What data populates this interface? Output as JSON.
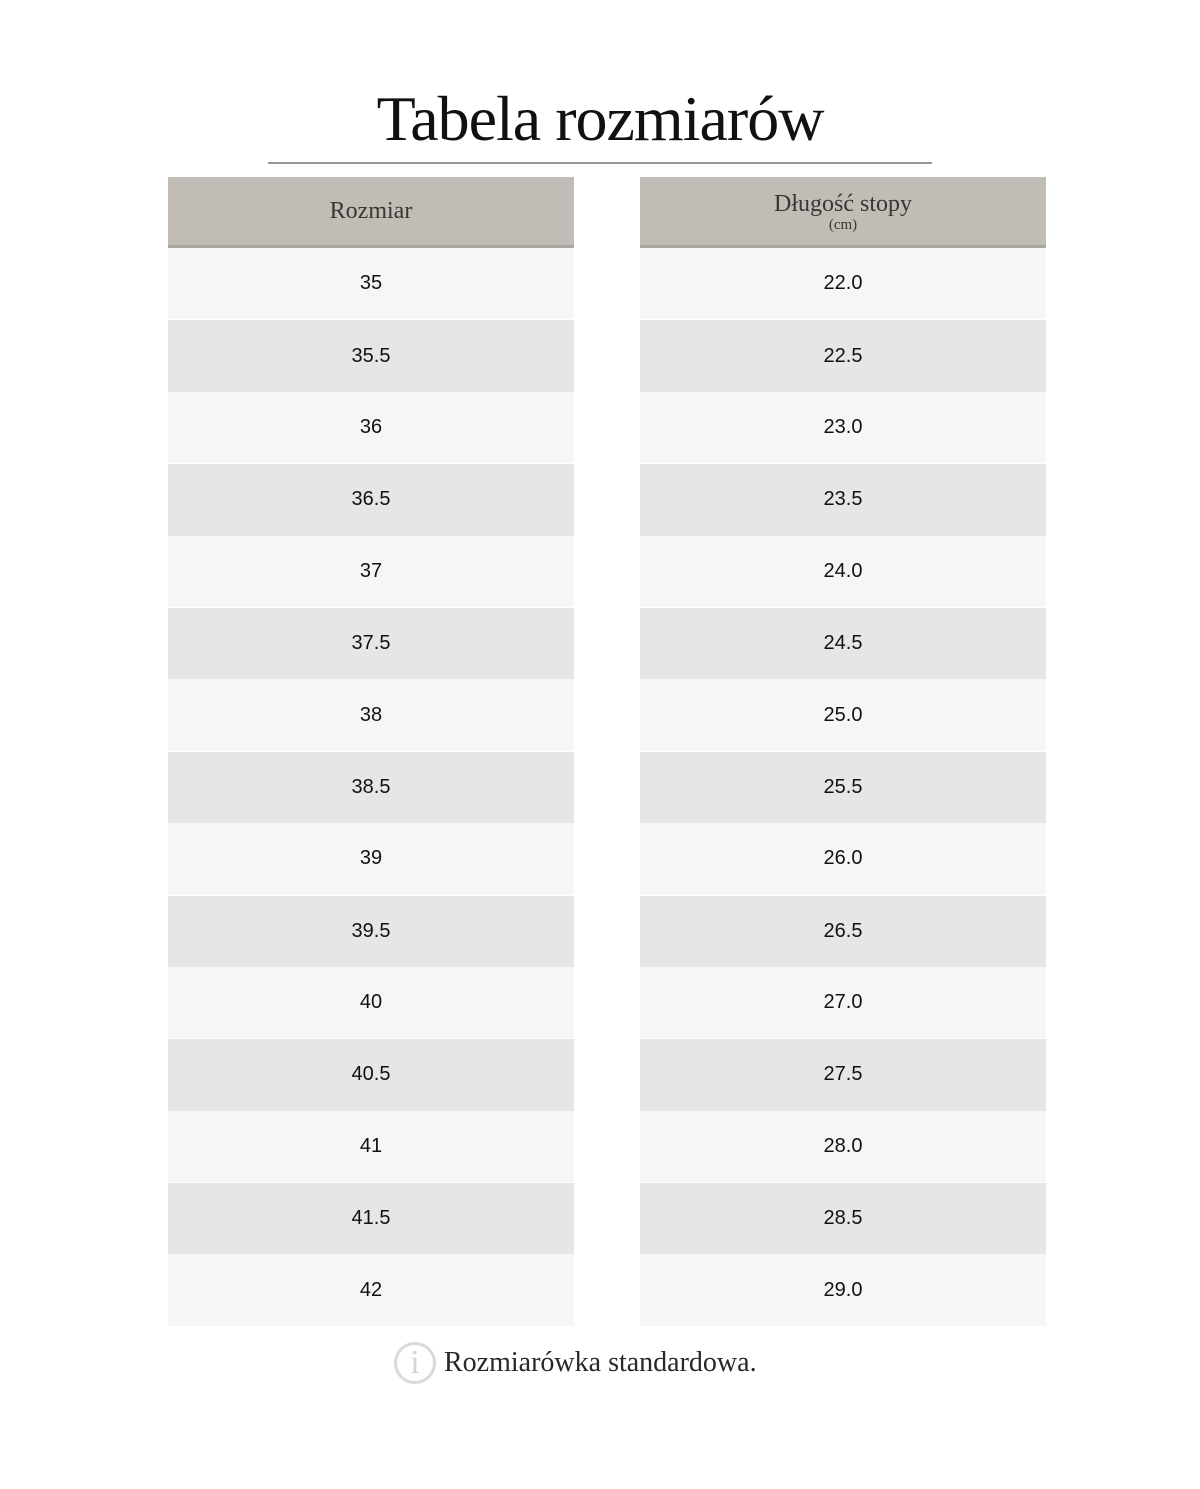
{
  "title": "Tabela rozmiarów",
  "columns": [
    {
      "header": "Rozmiar",
      "sub": ""
    },
    {
      "header": "Długość stopy",
      "sub": "(cm)"
    }
  ],
  "sizes": [
    "35",
    "35.5",
    "36",
    "36.5",
    "37",
    "37.5",
    "38",
    "38.5",
    "39",
    "39.5",
    "40",
    "40.5",
    "41",
    "41.5",
    "42"
  ],
  "lengths": [
    "22.0",
    "22.5",
    "23.0",
    "23.5",
    "24.0",
    "24.5",
    "25.0",
    "25.5",
    "26.0",
    "26.5",
    "27.0",
    "27.5",
    "28.0",
    "28.5",
    "29.0"
  ],
  "note": {
    "icon": "info-icon",
    "text": "Rozmiarówka standardowa."
  },
  "colors": {
    "header": "#c1bdb6",
    "row_light": "#f6f6f6",
    "row_dark": "#e6e6e6"
  }
}
